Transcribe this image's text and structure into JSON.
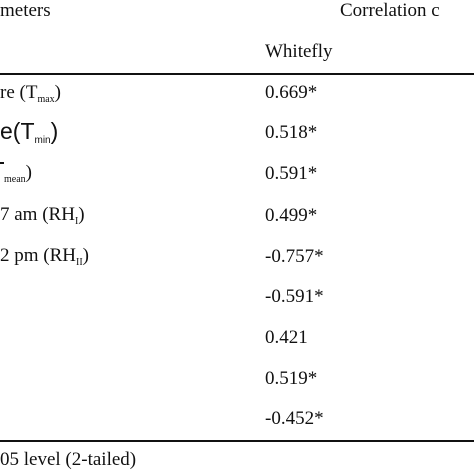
{
  "header": {
    "parameters_label": "meters",
    "correlation_label": "Correlation c",
    "whitefly_label": "Whitefly"
  },
  "rows": [
    {
      "param_pre": "re (T",
      "param_sub": "max",
      "param_post": ")",
      "value": "0.669*"
    },
    {
      "param_pre": "e(T",
      "param_sub": "min",
      "param_post": ")",
      "value": "0.518*"
    },
    {
      "param_pre": "",
      "param_sub": "mean",
      "param_post": ")",
      "value": "0.591*"
    },
    {
      "param_pre": "7 am (RH",
      "param_sub": "I",
      "param_post": ")",
      "value": "0.499*"
    },
    {
      "param_pre": "2 pm (RH",
      "param_sub": "II",
      "param_post": ")",
      "value": "-0.757*"
    },
    {
      "param_pre": "",
      "param_sub": "",
      "param_post": "",
      "value": "-0.591*"
    },
    {
      "param_pre": "",
      "param_sub": "",
      "param_post": "",
      "value": "0.421"
    },
    {
      "param_pre": "",
      "param_sub": "",
      "param_post": "",
      "value": "0.519*"
    },
    {
      "param_pre": "",
      "param_sub": "",
      "param_post": "",
      "value": "-0.452*"
    }
  ],
  "footnote": "05 level (2-tailed)"
}
